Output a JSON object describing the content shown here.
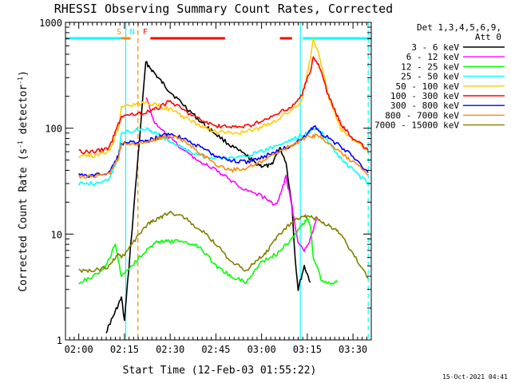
{
  "chart_data": {
    "type": "line",
    "title": "RHESSI Observing Summary Count Rates, Corrected",
    "xlabel": "Start Time (12-Feb-03 01:55:22)",
    "ylabel_main": "Corrected Count Rate (s",
    "ylabel_sup1": "-1",
    "ylabel_mid": " detector",
    "ylabel_sup2": "-1",
    "ylabel_end": ")",
    "yscale": "log",
    "ylim": [
      1,
      1000
    ],
    "xlim_minutes": [
      -4.37,
      96.0
    ],
    "x_tick_minutes": [
      0,
      15,
      30,
      45,
      60,
      75,
      90
    ],
    "x_tick_labels": [
      "02:00",
      "02:15",
      "02:30",
      "02:45",
      "03:00",
      "03:15",
      "03:30"
    ],
    "y_tick_values": [
      1,
      10,
      100,
      1000
    ],
    "y_tick_labels": [
      "1",
      "10",
      "100",
      "1000"
    ],
    "legend_title": "Det 1,3,4,5,6,9,",
    "legend_subtitle": "Att 0",
    "series": [
      {
        "name": "3 - 6 keV",
        "color": "#000000",
        "points": [
          [
            9,
            1.2
          ],
          [
            11,
            1.6
          ],
          [
            14,
            2.5
          ],
          [
            15,
            1.5
          ],
          [
            22,
            420
          ],
          [
            26,
            300
          ],
          [
            30,
            220
          ],
          [
            35,
            160
          ],
          [
            40,
            115
          ],
          [
            45,
            88
          ],
          [
            50,
            68
          ],
          [
            55,
            55
          ],
          [
            58,
            47
          ],
          [
            60,
            44
          ],
          [
            63,
            44
          ],
          [
            66,
            65
          ],
          [
            68,
            48
          ],
          [
            70,
            18
          ],
          [
            71,
            6
          ],
          [
            72,
            3
          ],
          [
            74,
            5
          ],
          [
            76,
            3.5
          ]
        ]
      },
      {
        "name": "6 - 12 keV",
        "color": "#ff00ff",
        "points": [
          [
            22,
            200
          ],
          [
            25,
            110
          ],
          [
            30,
            80
          ],
          [
            35,
            60
          ],
          [
            40,
            48
          ],
          [
            45,
            40
          ],
          [
            50,
            32
          ],
          [
            55,
            26
          ],
          [
            60,
            23
          ],
          [
            63,
            20
          ],
          [
            65,
            19
          ],
          [
            67,
            28
          ],
          [
            68,
            35
          ],
          [
            70,
            18
          ],
          [
            72,
            8
          ],
          [
            74,
            7
          ],
          [
            76,
            9
          ],
          [
            78,
            14
          ]
        ]
      },
      {
        "name": "12 - 25 keV",
        "color": "#00ff00",
        "points": [
          [
            0,
            3.5
          ],
          [
            5,
            4
          ],
          [
            9,
            5
          ],
          [
            12,
            8
          ],
          [
            14,
            4
          ],
          [
            22,
            7
          ],
          [
            26,
            8.5
          ],
          [
            30,
            8.5
          ],
          [
            35,
            8.5
          ],
          [
            40,
            7.5
          ],
          [
            45,
            5
          ],
          [
            50,
            4
          ],
          [
            55,
            3.5
          ],
          [
            60,
            5.5
          ],
          [
            65,
            6.5
          ],
          [
            70,
            9
          ],
          [
            73,
            12
          ],
          [
            75,
            14
          ],
          [
            76,
            12
          ],
          [
            77,
            6
          ],
          [
            80,
            3.5
          ],
          [
            85,
            3.5
          ]
        ]
      },
      {
        "name": "25 - 50 keV",
        "color": "#00ffff",
        "points": [
          [
            0,
            30
          ],
          [
            5,
            30
          ],
          [
            10,
            32
          ],
          [
            13,
            55
          ],
          [
            14,
            90
          ],
          [
            22,
            100
          ],
          [
            26,
            88
          ],
          [
            30,
            75
          ],
          [
            35,
            63
          ],
          [
            40,
            55
          ],
          [
            45,
            52
          ],
          [
            50,
            52
          ],
          [
            55,
            55
          ],
          [
            60,
            60
          ],
          [
            65,
            68
          ],
          [
            70,
            78
          ],
          [
            75,
            90
          ],
          [
            78,
            100
          ],
          [
            80,
            88
          ],
          [
            85,
            55
          ],
          [
            90,
            40
          ],
          [
            95,
            30
          ]
        ]
      },
      {
        "name": "50 - 100 keV",
        "color": "#ffcc00",
        "points": [
          [
            0,
            55
          ],
          [
            5,
            55
          ],
          [
            10,
            60
          ],
          [
            13,
            100
          ],
          [
            14,
            160
          ],
          [
            22,
            175
          ],
          [
            26,
            165
          ],
          [
            30,
            150
          ],
          [
            35,
            125
          ],
          [
            40,
            105
          ],
          [
            45,
            92
          ],
          [
            50,
            90
          ],
          [
            55,
            92
          ],
          [
            60,
            102
          ],
          [
            65,
            120
          ],
          [
            70,
            150
          ],
          [
            73,
            180
          ],
          [
            76,
            450
          ],
          [
            77,
            700
          ],
          [
            79,
            480
          ],
          [
            82,
            200
          ],
          [
            86,
            100
          ],
          [
            90,
            78
          ],
          [
            95,
            62
          ]
        ]
      },
      {
        "name": "100 - 300 keV",
        "color": "#ff0000",
        "points": [
          [
            0,
            60
          ],
          [
            5,
            60
          ],
          [
            10,
            65
          ],
          [
            13,
            110
          ],
          [
            14,
            130
          ],
          [
            22,
            140
          ],
          [
            26,
            155
          ],
          [
            30,
            180
          ],
          [
            35,
            145
          ],
          [
            40,
            120
          ],
          [
            45,
            105
          ],
          [
            50,
            102
          ],
          [
            55,
            105
          ],
          [
            60,
            115
          ],
          [
            65,
            135
          ],
          [
            70,
            160
          ],
          [
            73,
            200
          ],
          [
            76,
            350
          ],
          [
            77,
            470
          ],
          [
            79,
            380
          ],
          [
            82,
            200
          ],
          [
            86,
            110
          ],
          [
            90,
            80
          ],
          [
            95,
            62
          ]
        ]
      },
      {
        "name": "300 - 800 keV",
        "color": "#0000ff",
        "points": [
          [
            0,
            36
          ],
          [
            5,
            36
          ],
          [
            10,
            38
          ],
          [
            13,
            55
          ],
          [
            14,
            72
          ],
          [
            22,
            75
          ],
          [
            26,
            82
          ],
          [
            30,
            88
          ],
          [
            35,
            80
          ],
          [
            40,
            65
          ],
          [
            45,
            55
          ],
          [
            50,
            50
          ],
          [
            55,
            48
          ],
          [
            60,
            53
          ],
          [
            65,
            60
          ],
          [
            70,
            70
          ],
          [
            75,
            85
          ],
          [
            77,
            105
          ],
          [
            80,
            88
          ],
          [
            85,
            70
          ],
          [
            90,
            55
          ],
          [
            95,
            38
          ]
        ]
      },
      {
        "name": "800 - 7000 keV",
        "color": "#ff8800",
        "points": [
          [
            0,
            35
          ],
          [
            5,
            35
          ],
          [
            10,
            37
          ],
          [
            13,
            52
          ],
          [
            14,
            70
          ],
          [
            22,
            74
          ],
          [
            26,
            80
          ],
          [
            30,
            85
          ],
          [
            35,
            75
          ],
          [
            40,
            58
          ],
          [
            45,
            45
          ],
          [
            50,
            40
          ],
          [
            55,
            42
          ],
          [
            60,
            48
          ],
          [
            65,
            58
          ],
          [
            70,
            70
          ],
          [
            75,
            82
          ],
          [
            78,
            86
          ],
          [
            80,
            80
          ],
          [
            85,
            62
          ],
          [
            90,
            48
          ],
          [
            95,
            36
          ]
        ]
      },
      {
        "name": "7000 - 15000 keV",
        "color": "#808000",
        "points": [
          [
            0,
            4.5
          ],
          [
            5,
            4.5
          ],
          [
            10,
            5
          ],
          [
            13,
            6.5
          ],
          [
            14,
            6
          ],
          [
            22,
            12
          ],
          [
            26,
            14
          ],
          [
            30,
            16
          ],
          [
            35,
            14
          ],
          [
            40,
            11
          ],
          [
            45,
            8
          ],
          [
            50,
            5.5
          ],
          [
            55,
            4.5
          ],
          [
            58,
            5.5
          ],
          [
            62,
            7
          ],
          [
            66,
            10
          ],
          [
            70,
            13
          ],
          [
            74,
            15
          ],
          [
            78,
            14
          ],
          [
            82,
            12
          ],
          [
            86,
            10
          ],
          [
            90,
            6.5
          ],
          [
            95,
            3.8
          ]
        ]
      }
    ],
    "top_segments": [
      {
        "color": "#00ffff",
        "x": [
          -4.37,
          13.8
        ]
      },
      {
        "color": "#ff8800",
        "x": [
          13.8,
          17.0
        ]
      },
      {
        "color": "#ff0000",
        "x": [
          23.5,
          48.0
        ]
      },
      {
        "color": "#ff0000",
        "x": [
          66.0,
          70.0
        ]
      },
      {
        "color": "#00ffff",
        "x": [
          73.5,
          96.0
        ]
      }
    ],
    "top_labels": [
      {
        "text": "S",
        "color": "#ff8800",
        "x": 13.2
      },
      {
        "text": "N",
        "color": "#00ffff",
        "x": 17.5
      },
      {
        "text": "F",
        "color": "#ff0000",
        "x": 21.8
      }
    ],
    "vlines": [
      {
        "x": 15.4,
        "color": "#00ffff",
        "style": "solid"
      },
      {
        "x": 19.4,
        "color": "#ff8800",
        "style": "dashed"
      },
      {
        "x": 72.7,
        "color": "#00ffff",
        "style": "solid"
      },
      {
        "x": 95.0,
        "color": "#00ffff",
        "style": "dashed"
      }
    ],
    "footer_stamp": "15-Oct-2021 04:41"
  }
}
